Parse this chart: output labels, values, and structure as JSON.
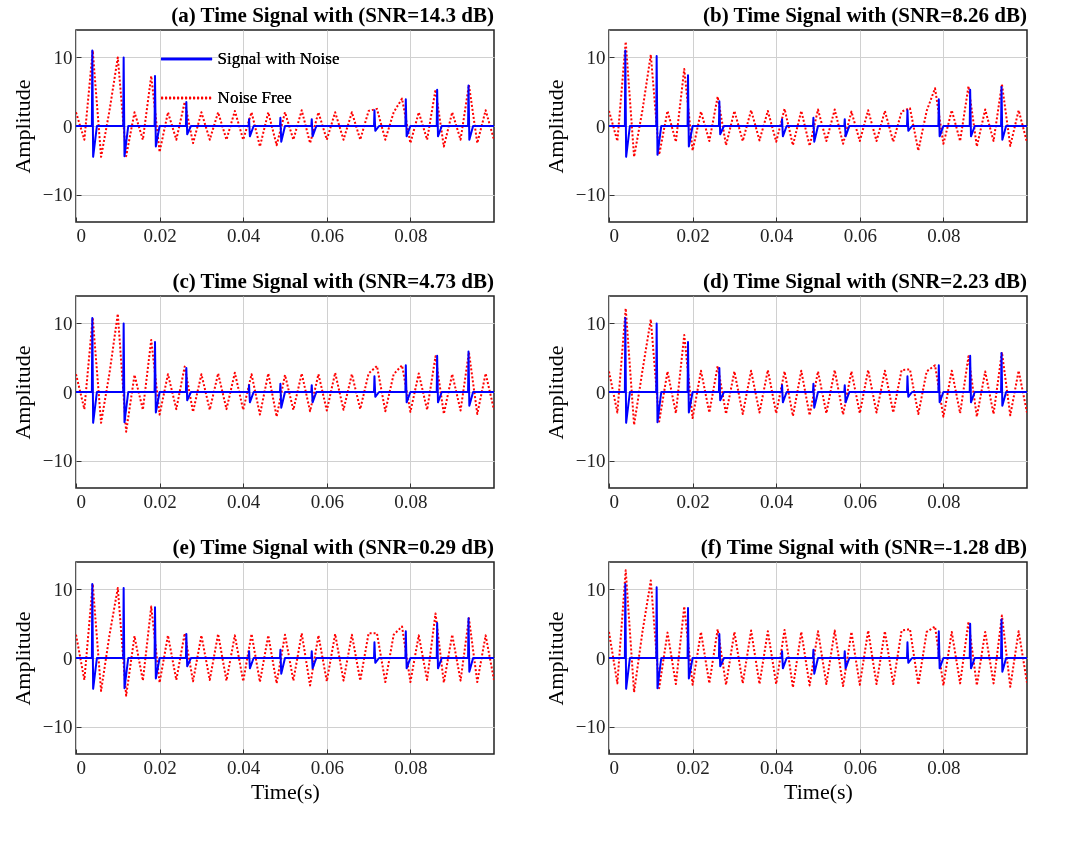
{
  "chart_data": [
    {
      "type": "line",
      "title": "(a) Time Signal with (SNR=14.3 dB)",
      "ylabel": "Amplitude",
      "xlim": [
        0,
        0.1
      ],
      "xticks": [
        0,
        0.02,
        0.04,
        0.06,
        0.08
      ],
      "ylim": [
        -14,
        14
      ],
      "yticks": [
        -10,
        0,
        10
      ],
      "grid": true,
      "legend": "top",
      "series": [
        {
          "name": "Signal with Noise",
          "color": "#0000ff",
          "line_style": "solid",
          "x": [
            0,
            0.0038,
            0.0039,
            0.0041,
            0.005,
            0.0113,
            0.0114,
            0.0116,
            0.0125,
            0.0188,
            0.0189,
            0.0191,
            0.02,
            0.0263,
            0.0264,
            0.0266,
            0.0275,
            0.0413,
            0.0414,
            0.0416,
            0.0425,
            0.0488,
            0.0489,
            0.0491,
            0.05,
            0.0563,
            0.0564,
            0.0566,
            0.0575,
            0.0713,
            0.0714,
            0.0716,
            0.0725,
            0.0788,
            0.0789,
            0.0791,
            0.08,
            0.0863,
            0.0864,
            0.0866,
            0.0875,
            0.0938,
            0.0939,
            0.0941,
            0.095,
            0.1
          ],
          "values": [
            0,
            0,
            11,
            -4.5,
            0,
            0,
            10,
            -4.4,
            0,
            0,
            7.3,
            -3,
            0,
            0,
            3.5,
            -1.2,
            0,
            0,
            1,
            -1.5,
            0,
            0,
            1.2,
            -2.3,
            0,
            0,
            1,
            -1.5,
            0,
            0,
            2.3,
            -0.7,
            0,
            0,
            3.9,
            -1.5,
            0,
            0,
            5.3,
            -1.5,
            0,
            0,
            5.9,
            -2,
            0,
            0
          ]
        },
        {
          "name": "Noise Free",
          "color": "#ff0000",
          "line_style": "dotted",
          "x": [
            0,
            0.002,
            0.004,
            0.006,
            0.008,
            0.01,
            0.012,
            0.014,
            0.016,
            0.018,
            0.02,
            0.022,
            0.024,
            0.026,
            0.028,
            0.03,
            0.032,
            0.034,
            0.036,
            0.038,
            0.04,
            0.042,
            0.044,
            0.046,
            0.048,
            0.05,
            0.052,
            0.054,
            0.056,
            0.058,
            0.06,
            0.062,
            0.064,
            0.066,
            0.068,
            0.07,
            0.072,
            0.074,
            0.076,
            0.078,
            0.08,
            0.082,
            0.084,
            0.086,
            0.088,
            0.09,
            0.092,
            0.094,
            0.096,
            0.098,
            0.1
          ],
          "values": [
            2,
            -2,
            11,
            -4.5,
            2.2,
            10,
            -4.4,
            2,
            -2,
            7.3,
            -3.8,
            2,
            -2,
            3.5,
            -2.5,
            2,
            -2,
            2,
            -2,
            2.2,
            -2,
            2,
            -3,
            2,
            -2.8,
            2,
            -2,
            2.3,
            -2.5,
            2,
            -2,
            2,
            -2,
            2,
            -2,
            2.2,
            2.5,
            -2,
            2,
            4,
            -2.5,
            2,
            -2,
            5.3,
            -3,
            2,
            -2,
            6,
            -2.5,
            2.3,
            -2
          ]
        }
      ]
    },
    {
      "type": "line",
      "title": "(b) Time Signal with (SNR=8.26 dB)",
      "ylabel": "Amplitude",
      "xlim": [
        0,
        0.1
      ],
      "xticks": [
        0,
        0.02,
        0.04,
        0.06,
        0.08
      ],
      "ylim": [
        -14,
        14
      ],
      "yticks": [
        -10,
        0,
        10
      ],
      "grid": true,
      "series": [
        {
          "color": "#0000ff",
          "line_style": "solid",
          "x": [
            0,
            0.0038,
            0.0039,
            0.0041,
            0.005,
            0.0113,
            0.0114,
            0.0116,
            0.0125,
            0.0188,
            0.0189,
            0.0191,
            0.02,
            0.0263,
            0.0264,
            0.0266,
            0.0275,
            0.0413,
            0.0414,
            0.0416,
            0.0425,
            0.0488,
            0.0489,
            0.0491,
            0.05,
            0.0563,
            0.0564,
            0.0566,
            0.0575,
            0.0713,
            0.0714,
            0.0716,
            0.0725,
            0.0788,
            0.0789,
            0.0791,
            0.08,
            0.0863,
            0.0864,
            0.0866,
            0.0875,
            0.0938,
            0.0939,
            0.0941,
            0.095,
            0.1
          ],
          "values": [
            0,
            0,
            11,
            -4.5,
            0,
            0,
            10.2,
            -4.2,
            0,
            0,
            7.4,
            -3,
            0,
            0,
            3.6,
            -1.2,
            0,
            0,
            1,
            -1.5,
            0,
            0,
            1.2,
            -2.3,
            0,
            0,
            1,
            -1.5,
            0,
            0,
            2.3,
            -0.7,
            0,
            0,
            3.9,
            -1.5,
            0,
            0,
            5.3,
            -1.5,
            0,
            0,
            5.7,
            -2,
            0,
            0
          ]
        },
        {
          "color": "#ff0000",
          "line_style": "dotted",
          "x": [
            0,
            0.002,
            0.004,
            0.006,
            0.008,
            0.01,
            0.012,
            0.014,
            0.016,
            0.018,
            0.02,
            0.022,
            0.024,
            0.026,
            0.028,
            0.03,
            0.032,
            0.034,
            0.036,
            0.038,
            0.04,
            0.042,
            0.044,
            0.046,
            0.048,
            0.05,
            0.052,
            0.054,
            0.056,
            0.058,
            0.06,
            0.062,
            0.064,
            0.066,
            0.068,
            0.07,
            0.072,
            0.074,
            0.076,
            0.078,
            0.08,
            0.082,
            0.084,
            0.086,
            0.088,
            0.09,
            0.092,
            0.094,
            0.096,
            0.098,
            0.1
          ],
          "values": [
            2.2,
            -2.2,
            12.3,
            -4.5,
            2.3,
            10.4,
            -4.2,
            2.2,
            -2.3,
            8.3,
            -3.6,
            2.1,
            -2.2,
            4.3,
            -2.8,
            2.2,
            -2.2,
            2.3,
            -2.1,
            2.2,
            -2.3,
            2.5,
            -2.8,
            2.2,
            -2.9,
            2.4,
            -2.2,
            2.4,
            -2.6,
            2.1,
            -2.2,
            2.3,
            -2.2,
            2.2,
            -2.3,
            2.1,
            2.6,
            -3.6,
            2.2,
            5.5,
            -2.6,
            2.3,
            -2.2,
            5.8,
            -3,
            2.4,
            -2.2,
            6.1,
            -2.9,
            2.3,
            -2.4
          ]
        }
      ]
    },
    {
      "type": "line",
      "title": "(c) Time Signal with (SNR=4.73 dB)",
      "ylabel": "Amplitude",
      "xlim": [
        0,
        0.1
      ],
      "xticks": [
        0,
        0.02,
        0.04,
        0.06,
        0.08
      ],
      "ylim": [
        -14,
        14
      ],
      "yticks": [
        -10,
        0,
        10
      ],
      "grid": true,
      "series": [
        {
          "color": "#0000ff",
          "line_style": "solid",
          "x": [
            0,
            0.0038,
            0.0039,
            0.0041,
            0.005,
            0.0113,
            0.0114,
            0.0116,
            0.0125,
            0.0188,
            0.0189,
            0.0191,
            0.02,
            0.0263,
            0.0264,
            0.0266,
            0.0275,
            0.0413,
            0.0414,
            0.0416,
            0.0425,
            0.0488,
            0.0489,
            0.0491,
            0.05,
            0.0563,
            0.0564,
            0.0566,
            0.0575,
            0.0713,
            0.0714,
            0.0716,
            0.0725,
            0.0788,
            0.0789,
            0.0791,
            0.08,
            0.0863,
            0.0864,
            0.0866,
            0.0875,
            0.0938,
            0.0939,
            0.0941,
            0.095,
            0.1
          ],
          "values": [
            0,
            0,
            10.8,
            -4.5,
            0,
            0,
            10,
            -4.4,
            0,
            0,
            7.3,
            -3,
            0,
            0,
            3.5,
            -1.2,
            0,
            0,
            1,
            -1.5,
            0,
            0,
            1.2,
            -2.3,
            0,
            0,
            1,
            -1.5,
            0,
            0,
            2.3,
            -0.7,
            0,
            0,
            3.9,
            -1.5,
            0,
            0,
            5.3,
            -1.5,
            0,
            0,
            5.9,
            -2,
            0,
            0
          ]
        },
        {
          "color": "#ff0000",
          "line_style": "dotted",
          "x": [
            0,
            0.002,
            0.004,
            0.006,
            0.008,
            0.01,
            0.012,
            0.014,
            0.016,
            0.018,
            0.02,
            0.022,
            0.024,
            0.026,
            0.028,
            0.03,
            0.032,
            0.034,
            0.036,
            0.038,
            0.04,
            0.042,
            0.044,
            0.046,
            0.048,
            0.05,
            0.052,
            0.054,
            0.056,
            0.058,
            0.06,
            0.062,
            0.064,
            0.066,
            0.068,
            0.07,
            0.072,
            0.074,
            0.076,
            0.078,
            0.08,
            0.082,
            0.084,
            0.086,
            0.088,
            0.09,
            0.092,
            0.094,
            0.096,
            0.098,
            0.1
          ],
          "values": [
            2.6,
            -2.5,
            10.8,
            -4.5,
            2.7,
            11.4,
            -5.8,
            2.5,
            -2.6,
            7.6,
            -3.3,
            2.6,
            -2.5,
            3.7,
            -2.9,
            2.6,
            -2.6,
            2.7,
            -2.5,
            2.8,
            -2.6,
            2.6,
            -3.3,
            2.7,
            -3.6,
            2.5,
            -2.6,
            2.7,
            -2.8,
            2.6,
            -2.7,
            2.8,
            -2.6,
            2.6,
            -2.5,
            2.7,
            3.8,
            -2.8,
            2.6,
            3.9,
            -2.9,
            2.7,
            -2.6,
            5.2,
            -3.2,
            2.6,
            -2.7,
            5.8,
            -3.2,
            2.7,
            -2.6
          ]
        }
      ]
    },
    {
      "type": "line",
      "title": "(d) Time Signal with (SNR=2.23 dB)",
      "ylabel": "Amplitude",
      "xlim": [
        0,
        0.1
      ],
      "xticks": [
        0,
        0.02,
        0.04,
        0.06,
        0.08
      ],
      "ylim": [
        -14,
        14
      ],
      "yticks": [
        -10,
        0,
        10
      ],
      "grid": true,
      "series": [
        {
          "color": "#0000ff",
          "line_style": "solid",
          "x": [
            0,
            0.0038,
            0.0039,
            0.0041,
            0.005,
            0.0113,
            0.0114,
            0.0116,
            0.0125,
            0.0188,
            0.0189,
            0.0191,
            0.02,
            0.0263,
            0.0264,
            0.0266,
            0.0275,
            0.0413,
            0.0414,
            0.0416,
            0.0425,
            0.0488,
            0.0489,
            0.0491,
            0.05,
            0.0563,
            0.0564,
            0.0566,
            0.0575,
            0.0713,
            0.0714,
            0.0716,
            0.0725,
            0.0788,
            0.0789,
            0.0791,
            0.08,
            0.0863,
            0.0864,
            0.0866,
            0.0875,
            0.0938,
            0.0939,
            0.0941,
            0.095,
            0.1
          ],
          "values": [
            0,
            0,
            10.8,
            -4.5,
            0,
            0,
            10,
            -4.4,
            0,
            0,
            7.3,
            -3,
            0,
            0,
            3.5,
            -1.2,
            0,
            0,
            1,
            -1.5,
            0,
            0,
            1.2,
            -2.3,
            0,
            0,
            1,
            -1.5,
            0,
            0,
            2.3,
            -0.7,
            0,
            0,
            3.9,
            -1.5,
            0,
            0,
            5.3,
            -1.5,
            0,
            0,
            5.7,
            -2,
            0,
            0
          ]
        },
        {
          "color": "#ff0000",
          "line_style": "dotted",
          "x": [
            0,
            0.002,
            0.004,
            0.006,
            0.008,
            0.01,
            0.012,
            0.014,
            0.016,
            0.018,
            0.02,
            0.022,
            0.024,
            0.026,
            0.028,
            0.03,
            0.032,
            0.034,
            0.036,
            0.038,
            0.04,
            0.042,
            0.044,
            0.046,
            0.048,
            0.05,
            0.052,
            0.054,
            0.056,
            0.058,
            0.06,
            0.062,
            0.064,
            0.066,
            0.068,
            0.07,
            0.072,
            0.074,
            0.076,
            0.078,
            0.08,
            0.082,
            0.084,
            0.086,
            0.088,
            0.09,
            0.092,
            0.094,
            0.096,
            0.098,
            0.1
          ],
          "values": [
            3,
            -3,
            12.2,
            -4.8,
            3.1,
            10.6,
            -4.3,
            3,
            -3.1,
            8.3,
            -3.8,
            3.1,
            -3,
            3.8,
            -3.2,
            3,
            -3.2,
            3.1,
            -3,
            3.2,
            -3.1,
            3,
            -3.5,
            3.1,
            -3.4,
            3,
            -3.1,
            3.2,
            -3.3,
            3,
            -3.1,
            3.2,
            -3,
            3.1,
            -3,
            3.2,
            3.3,
            -3.2,
            3,
            3.9,
            -3.6,
            3.1,
            -3.1,
            5.2,
            -3.6,
            3,
            -3.2,
            5.8,
            -3.4,
            3.1,
            -3
          ]
        }
      ]
    },
    {
      "type": "line",
      "title": "(e) Time Signal with (SNR=0.29 dB)",
      "xlabel": "Time(s)",
      "ylabel": "Amplitude",
      "xlim": [
        0,
        0.1
      ],
      "xticks": [
        0,
        0.02,
        0.04,
        0.06,
        0.08
      ],
      "ylim": [
        -14,
        14
      ],
      "yticks": [
        -10,
        0,
        10
      ],
      "grid": true,
      "series": [
        {
          "color": "#0000ff",
          "line_style": "solid",
          "x": [
            0,
            0.0038,
            0.0039,
            0.0041,
            0.005,
            0.0113,
            0.0114,
            0.0116,
            0.0125,
            0.0188,
            0.0189,
            0.0191,
            0.02,
            0.0263,
            0.0264,
            0.0266,
            0.0275,
            0.0413,
            0.0414,
            0.0416,
            0.0425,
            0.0488,
            0.0489,
            0.0491,
            0.05,
            0.0563,
            0.0564,
            0.0566,
            0.0575,
            0.0713,
            0.0714,
            0.0716,
            0.0725,
            0.0788,
            0.0789,
            0.0791,
            0.08,
            0.0863,
            0.0864,
            0.0866,
            0.0875,
            0.0938,
            0.0939,
            0.0941,
            0.095,
            0.1
          ],
          "values": [
            0,
            0,
            10.8,
            -4.5,
            0,
            0,
            10.2,
            -4.4,
            0,
            0,
            7.4,
            -3,
            0,
            0,
            3.5,
            -1.2,
            0,
            0,
            1,
            -1.5,
            0,
            0,
            1.2,
            -2.3,
            0,
            0,
            1,
            -1.5,
            0,
            0,
            2.3,
            -0.7,
            0,
            0,
            3.9,
            -1.5,
            0,
            0,
            5.1,
            -1.5,
            0,
            0,
            5.8,
            -2,
            0,
            0
          ]
        },
        {
          "color": "#ff0000",
          "line_style": "dotted",
          "x": [
            0,
            0.002,
            0.004,
            0.006,
            0.008,
            0.01,
            0.012,
            0.014,
            0.016,
            0.018,
            0.02,
            0.022,
            0.024,
            0.026,
            0.028,
            0.03,
            0.032,
            0.034,
            0.036,
            0.038,
            0.04,
            0.042,
            0.044,
            0.046,
            0.048,
            0.05,
            0.052,
            0.054,
            0.056,
            0.058,
            0.06,
            0.062,
            0.064,
            0.066,
            0.068,
            0.07,
            0.072,
            0.074,
            0.076,
            0.078,
            0.08,
            0.082,
            0.084,
            0.086,
            0.088,
            0.09,
            0.092,
            0.094,
            0.096,
            0.098,
            0.1
          ],
          "values": [
            3.4,
            -3.2,
            10.8,
            -4.8,
            3.3,
            10.2,
            -5.5,
            3.2,
            -3.3,
            7.5,
            -3.6,
            3.3,
            -3.2,
            3.6,
            -3.4,
            3.3,
            -3.2,
            3.5,
            -3.3,
            3.3,
            -3.4,
            3.5,
            -3.5,
            3.3,
            -3.7,
            3.4,
            -3.3,
            3.6,
            -4,
            3.3,
            -3.4,
            3.5,
            -3.3,
            3.4,
            -3.3,
            3.6,
            3.6,
            -3.5,
            3.4,
            4.6,
            -3.5,
            3.3,
            -3.2,
            6.5,
            -3.6,
            3.4,
            -3.3,
            5.8,
            -3.5,
            3.3,
            -3.2
          ]
        }
      ]
    },
    {
      "type": "line",
      "title": "(f) Time Signal with (SNR=-1.28 dB)",
      "xlabel": "Time(s)",
      "ylabel": "Amplitude",
      "xlim": [
        0,
        0.1
      ],
      "xticks": [
        0,
        0.02,
        0.04,
        0.06,
        0.08
      ],
      "ylim": [
        -14,
        14
      ],
      "yticks": [
        -10,
        0,
        10
      ],
      "grid": true,
      "series": [
        {
          "color": "#0000ff",
          "line_style": "solid",
          "x": [
            0,
            0.0038,
            0.0039,
            0.0041,
            0.005,
            0.0113,
            0.0114,
            0.0116,
            0.0125,
            0.0188,
            0.0189,
            0.0191,
            0.02,
            0.0263,
            0.0264,
            0.0266,
            0.0275,
            0.0413,
            0.0414,
            0.0416,
            0.0425,
            0.0488,
            0.0489,
            0.0491,
            0.05,
            0.0563,
            0.0564,
            0.0566,
            0.0575,
            0.0713,
            0.0714,
            0.0716,
            0.0725,
            0.0788,
            0.0789,
            0.0791,
            0.08,
            0.0863,
            0.0864,
            0.0866,
            0.0875,
            0.0938,
            0.0939,
            0.0941,
            0.095,
            0.1
          ],
          "values": [
            0,
            0,
            10.8,
            -4.5,
            0,
            0,
            10.3,
            -4.4,
            0,
            0,
            7.3,
            -3,
            0,
            0,
            3.5,
            -1.2,
            0,
            0,
            1,
            -1.5,
            0,
            0,
            1.2,
            -2.3,
            0,
            0,
            1,
            -1.5,
            0,
            0,
            2.3,
            -0.7,
            0,
            0,
            3.9,
            -1.5,
            0,
            0,
            5,
            -1.5,
            0,
            0,
            5.6,
            -2,
            0,
            0
          ]
        },
        {
          "color": "#ff0000",
          "line_style": "dotted",
          "x": [
            0,
            0.002,
            0.004,
            0.006,
            0.008,
            0.01,
            0.012,
            0.014,
            0.016,
            0.018,
            0.02,
            0.022,
            0.024,
            0.026,
            0.028,
            0.03,
            0.032,
            0.034,
            0.036,
            0.038,
            0.04,
            0.042,
            0.044,
            0.046,
            0.048,
            0.05,
            0.052,
            0.054,
            0.056,
            0.058,
            0.06,
            0.062,
            0.064,
            0.066,
            0.068,
            0.07,
            0.072,
            0.074,
            0.076,
            0.078,
            0.08,
            0.082,
            0.084,
            0.086,
            0.088,
            0.09,
            0.092,
            0.094,
            0.096,
            0.098,
            0.1
          ],
          "values": [
            3.8,
            -3.7,
            12.8,
            -5,
            3.8,
            11.3,
            -4.4,
            3.7,
            -3.8,
            7.5,
            -3.9,
            3.8,
            -3.7,
            4.2,
            -3.9,
            3.8,
            -3.7,
            4,
            -3.8,
            3.9,
            -3.8,
            4.1,
            -4.3,
            3.8,
            -4,
            3.9,
            -3.8,
            4,
            -4.1,
            3.8,
            -3.9,
            4,
            -3.8,
            3.9,
            -3.8,
            4,
            4.2,
            -3.9,
            3.8,
            4.6,
            -4,
            3.8,
            -3.7,
            5.3,
            -4,
            3.8,
            -3.7,
            6.2,
            -4.2,
            3.9,
            -3.6
          ]
        }
      ]
    }
  ]
}
